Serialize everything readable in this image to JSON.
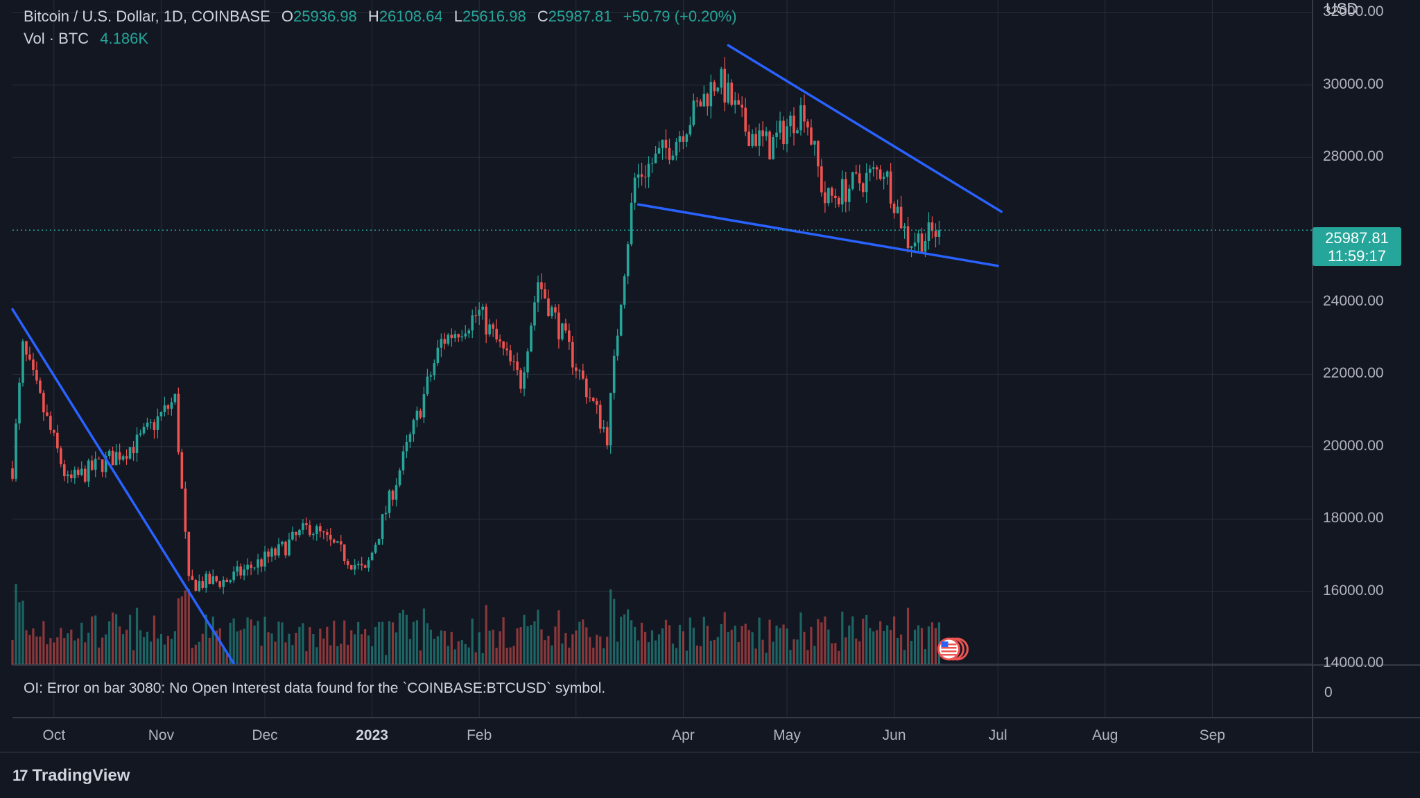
{
  "header": {
    "symbol": "Bitcoin / U.S. Dollar, 1D, COINBASE",
    "o_label": "O",
    "o_value": "25936.98",
    "h_label": "H",
    "h_value": "26108.64",
    "l_label": "L",
    "l_value": "25616.98",
    "c_label": "C",
    "c_value": "25987.81",
    "change": "+50.79 (+0.20%)",
    "vol_label": "Vol · BTC",
    "vol_value": "4.186K"
  },
  "currency_label": "USD",
  "price_tag": {
    "price": "25987.81",
    "countdown": "11:59:17"
  },
  "oi_message": "OI: Error on bar 3080: No Open Interest data found for the `COINBASE:BTCUSD` symbol.",
  "oi_axis_label": "0",
  "brand": "TradingView",
  "colors": {
    "background": "#131722",
    "up": "#26a69a",
    "down": "#ef5350",
    "trendline": "#2962ff",
    "grid": "#2a2e39"
  },
  "chart_data": {
    "type": "candlestick",
    "x_axis": {
      "ticks": [
        "Oct",
        "Nov",
        "Dec",
        "2023",
        "Feb",
        "Apr",
        "May",
        "Jun",
        "Jul",
        "Aug",
        "Sep"
      ],
      "range": [
        "2022-09-19",
        "2023-09-30"
      ]
    },
    "y_axis": {
      "ticks": [
        "14000.00",
        "16000.00",
        "18000.00",
        "20000.00",
        "22000.00",
        "24000.00",
        "28000.00",
        "30000.00",
        "32000.00"
      ],
      "range": [
        14000,
        32200
      ]
    },
    "key_points": [
      {
        "date": "2022-09-19",
        "close": 19400
      },
      {
        "date": "2022-09-22",
        "close": 22700
      },
      {
        "date": "2022-10-05",
        "close": 19000
      },
      {
        "date": "2022-10-25",
        "close": 20100
      },
      {
        "date": "2022-11-05",
        "close": 21300
      },
      {
        "date": "2022-11-09",
        "close": 16200
      },
      {
        "date": "2022-11-20",
        "close": 16300
      },
      {
        "date": "2022-12-05",
        "close": 17100
      },
      {
        "date": "2022-12-14",
        "close": 17800
      },
      {
        "date": "2022-12-30",
        "close": 16500
      },
      {
        "date": "2023-01-14",
        "close": 20800
      },
      {
        "date": "2023-01-21",
        "close": 22900
      },
      {
        "date": "2023-02-01",
        "close": 23700
      },
      {
        "date": "2023-02-13",
        "close": 21800
      },
      {
        "date": "2023-02-18",
        "close": 24600
      },
      {
        "date": "2023-03-10",
        "close": 20300
      },
      {
        "date": "2023-03-14",
        "close": 24200
      },
      {
        "date": "2023-03-18",
        "close": 27400
      },
      {
        "date": "2023-03-29",
        "close": 28400
      },
      {
        "date": "2023-04-11",
        "close": 30200
      },
      {
        "date": "2023-04-19",
        "close": 28800
      },
      {
        "date": "2023-04-26",
        "close": 28300
      },
      {
        "date": "2023-05-06",
        "close": 29400
      },
      {
        "date": "2023-05-12",
        "close": 26800
      },
      {
        "date": "2023-05-29",
        "close": 27700
      },
      {
        "date": "2023-06-05",
        "close": 25700
      },
      {
        "date": "2023-06-10",
        "close": 25800
      },
      {
        "date": "2023-06-14",
        "close": 25988
      }
    ],
    "last_close": 25987.81,
    "volume_series": "Vol · BTC",
    "trendlines": [
      {
        "from": {
          "date": "2022-09-19",
          "price": 23800
        },
        "to": {
          "date": "2022-11-22",
          "price": 14000
        }
      },
      {
        "from": {
          "date": "2023-04-14",
          "price": 31100
        },
        "to": {
          "date": "2023-07-02",
          "price": 26500
        }
      },
      {
        "from": {
          "date": "2023-03-19",
          "price": 26700
        },
        "to": {
          "date": "2023-07-01",
          "price": 25000
        }
      }
    ]
  }
}
